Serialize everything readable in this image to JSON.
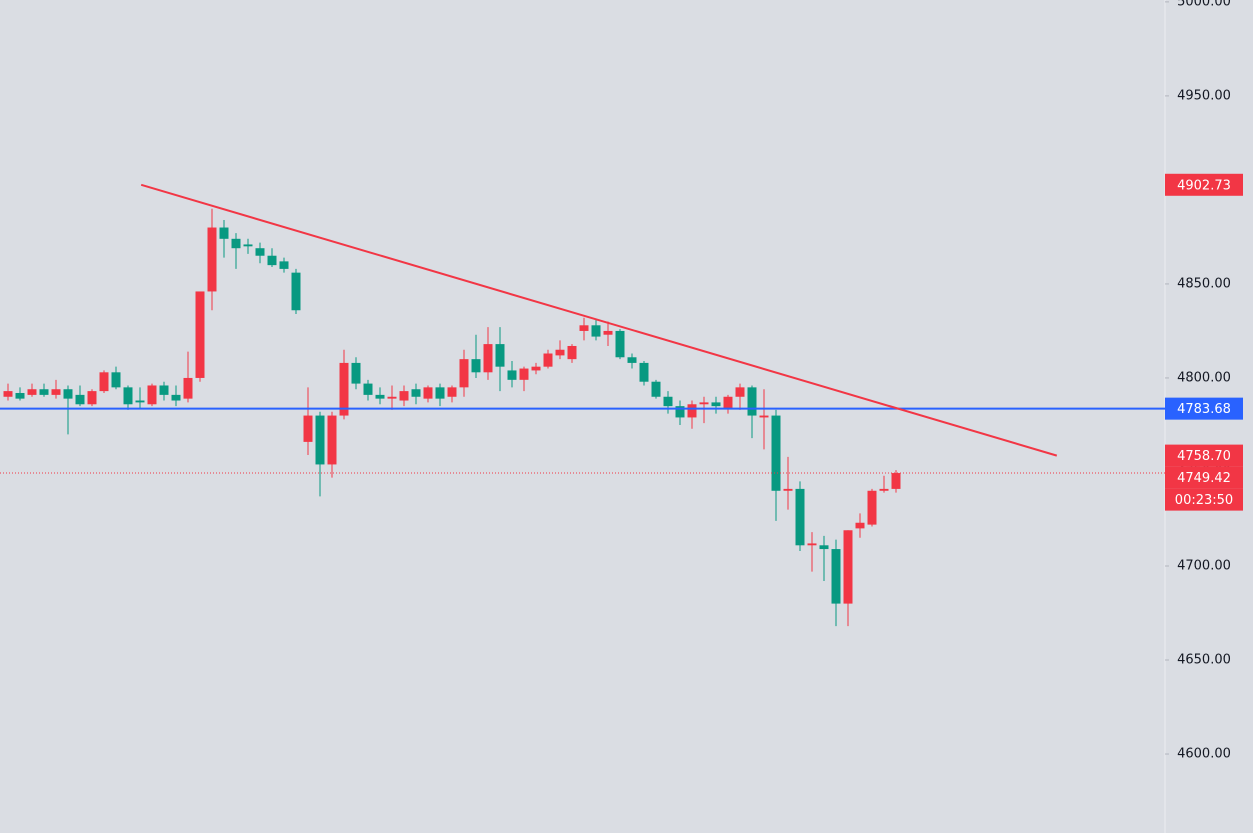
{
  "chart_data": {
    "type": "candlestick",
    "ylim": [
      4558,
      5001
    ],
    "yticks": [
      {
        "value": 5000,
        "label": "5000.00"
      },
      {
        "value": 4950,
        "label": "4950.00"
      },
      {
        "value": 4900,
        "label": "4900.00"
      },
      {
        "value": 4850,
        "label": "4850.00"
      },
      {
        "value": 4800,
        "label": "4800.00"
      },
      {
        "value": 4750,
        "label": "4750.00"
      },
      {
        "value": 4700,
        "label": "4700.00"
      },
      {
        "value": 4650,
        "label": "4650.00"
      },
      {
        "value": 4600,
        "label": "4600.00"
      }
    ],
    "up_color": "#f23645",
    "down_color": "#089981",
    "candles": {
      "open": [
        4790,
        4792,
        4791,
        4794,
        4791,
        4794,
        4791,
        4786,
        4793,
        4803,
        4795,
        4788,
        4786,
        4796,
        4791,
        4789,
        4800,
        4846,
        4880,
        4874,
        4871,
        4869,
        4865,
        4862,
        4856,
        4766,
        4780,
        4754,
        4780,
        4808,
        4797,
        4791,
        4789,
        4788,
        4794,
        4789,
        4795,
        4790,
        4795,
        4810,
        4803,
        4818,
        4804,
        4799,
        4804,
        4806,
        4812,
        4810,
        4825,
        4828,
        4823,
        4825,
        4811,
        4808,
        4798,
        4790,
        4785,
        4779,
        4786,
        4787,
        4784,
        4790,
        4795,
        4779,
        4780,
        4740,
        4741,
        4711,
        4711,
        4709,
        4680,
        4720,
        4722,
        4740,
        4741
      ],
      "high": [
        4797,
        4795,
        4797,
        4797,
        4799,
        4796,
        4796,
        4794,
        4804,
        4806,
        4796,
        4795,
        4797,
        4798,
        4796,
        4814,
        4846,
        4890,
        4884,
        4877,
        4874,
        4872,
        4869,
        4864,
        4858,
        4795,
        4782,
        4782,
        4815,
        4811,
        4799,
        4795,
        4796,
        4796,
        4797,
        4796,
        4797,
        4796,
        4815,
        4823,
        4827,
        4827,
        4809,
        4806,
        4808,
        4815,
        4820,
        4818,
        4832,
        4831,
        4830,
        4826,
        4813,
        4809,
        4799,
        4793,
        4788,
        4788,
        4790,
        4790,
        4791,
        4797,
        4796,
        4794,
        4783,
        4758,
        4745,
        4718,
        4716,
        4714,
        4719,
        4728,
        4741,
        4748,
        4751
      ],
      "low": [
        4788,
        4788,
        4790,
        4790,
        4789,
        4770,
        4785,
        4785,
        4792,
        4794,
        4783,
        4784,
        4785,
        4788,
        4785,
        4787,
        4798,
        4836,
        4864,
        4858,
        4866,
        4861,
        4859,
        4856,
        4834,
        4759,
        4737,
        4747,
        4778,
        4794,
        4788,
        4786,
        4783,
        4785,
        4786,
        4787,
        4785,
        4787,
        4790,
        4800,
        4799,
        4793,
        4795,
        4793,
        4802,
        4805,
        4810,
        4808,
        4820,
        4820,
        4817,
        4810,
        4805,
        4796,
        4789,
        4781,
        4775,
        4773,
        4776,
        4781,
        4781,
        4783,
        4768,
        4762,
        4724,
        4730,
        4708,
        4697,
        4692,
        4668,
        4668,
        4715,
        4721,
        4739,
        4739
      ],
      "close": [
        4793,
        4789,
        4794,
        4791,
        4794,
        4789,
        4786,
        4793,
        4803,
        4795,
        4786,
        4787,
        4796,
        4791,
        4788,
        4800,
        4846,
        4880,
        4874,
        4869,
        4870,
        4865,
        4860,
        4858,
        4836,
        4780,
        4754,
        4780,
        4808,
        4797,
        4791,
        4789,
        4790,
        4793,
        4790,
        4795,
        4789,
        4795,
        4810,
        4803,
        4818,
        4806,
        4799,
        4805,
        4806,
        4813,
        4815,
        4817,
        4828,
        4822,
        4825,
        4811,
        4808,
        4798,
        4790,
        4785,
        4779,
        4786,
        4787,
        4785,
        4790,
        4795,
        4780,
        4780,
        4740,
        4741,
        4711,
        4712,
        4709,
        4680,
        4719,
        4723,
        4740,
        4741,
        4749.42
      ]
    },
    "trendline": {
      "color": "#f23645",
      "x": [
        11.1,
        87.4
      ],
      "values": [
        4902.73,
        4758.7
      ],
      "value_labels": [
        "4902.73",
        "4758.70"
      ]
    },
    "hline": {
      "color": "#2962ff",
      "value": 4783.68
    },
    "last_price": {
      "color": "#f23645",
      "value": 4749.42,
      "countdown": "00:23:50"
    }
  }
}
